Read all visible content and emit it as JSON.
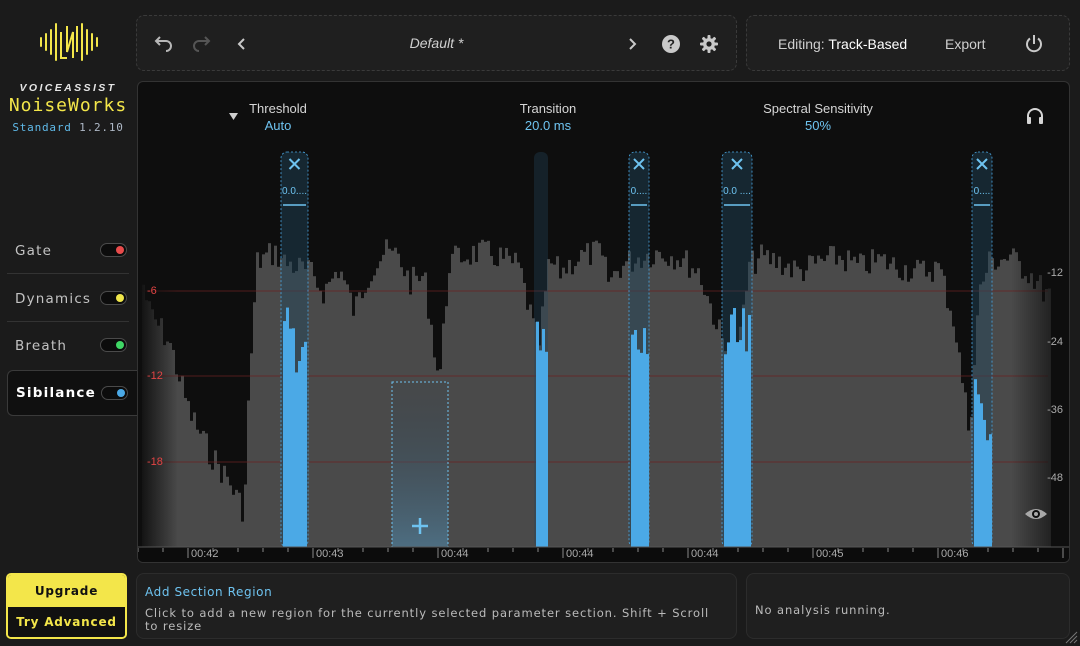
{
  "brand": {
    "tagline": "VOICEASSIST",
    "name": "NoiseWorks",
    "edition": "Standard",
    "version": "1.2.10",
    "accent": "#f3e64a"
  },
  "sidebar": {
    "items": [
      {
        "label": "Gate",
        "dot_color": "#e84b4b",
        "active": false
      },
      {
        "label": "Dynamics",
        "dot_color": "#efe64a",
        "active": false
      },
      {
        "label": "Breath",
        "dot_color": "#3fd665",
        "active": false
      },
      {
        "label": "Sibilance",
        "dot_color": "#4ba9e6",
        "active": true
      }
    ]
  },
  "upgrade": {
    "label": "Upgrade",
    "cta": "Try Advanced"
  },
  "toolbar": {
    "preset": "Default *",
    "icons": [
      "undo-icon",
      "redo-icon",
      "chevron-left-icon",
      "chevron-right-icon",
      "help-icon",
      "gear-icon"
    ]
  },
  "editbar": {
    "editing_label": "Editing:",
    "editing_value": "Track-Based",
    "export_label": "Export",
    "icon": "power-icon"
  },
  "params": {
    "threshold": {
      "label": "Threshold",
      "value": "Auto"
    },
    "transition": {
      "label": "Transition",
      "value": "20.0 ms"
    },
    "sensitivity": {
      "label": "Spectral Sensitivity",
      "value": "50%"
    }
  },
  "display": {
    "db_left": [
      "-6",
      "-12",
      "-18"
    ],
    "db_right": [
      "-12",
      "-24",
      "-36",
      "-48"
    ],
    "time_ticks": [
      "00:42",
      "00:43",
      "00:44",
      "00:44",
      "00:44",
      "00:45",
      "00:46"
    ],
    "regions": [
      {
        "label": "0.0....",
        "closable": true
      },
      {
        "label": "",
        "closable": false
      },
      {
        "label": "0....",
        "closable": true
      },
      {
        "label": "0.0 ....",
        "closable": true
      },
      {
        "label": "0....",
        "closable": true
      }
    ],
    "region_color": "#4ba9e6"
  },
  "hint": {
    "title": "Add Section Region",
    "description": "Click to add a new region for the currently selected parameter section. Shift + Scroll to resize"
  },
  "analysis": {
    "status": "No analysis running."
  }
}
